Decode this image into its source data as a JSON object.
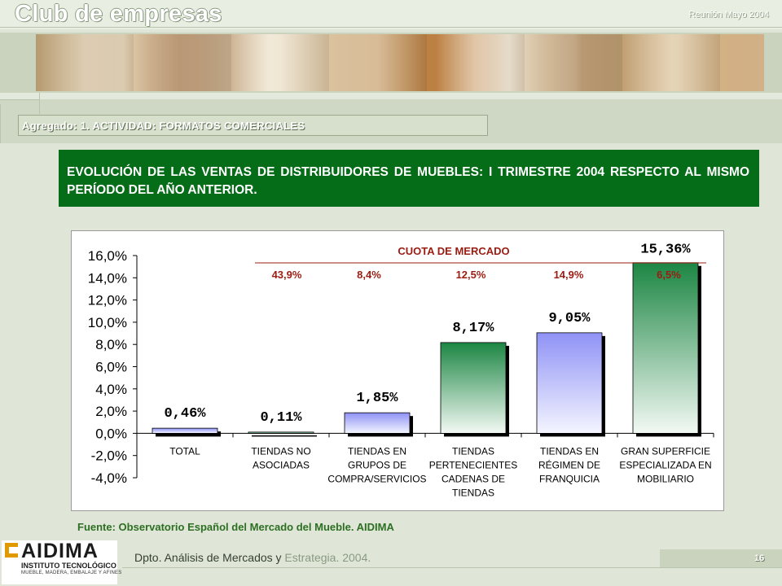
{
  "header": {
    "title": "Club de empresas",
    "meeting": "Reunión Mayo 2004"
  },
  "section": {
    "subtitle": "Agregado: 1. ACTIVIDAD: FORMATOS COMERCIALES"
  },
  "main": {
    "heading": "EVOLUCIÓN DE LAS VENTAS DE DISTRIBUIDORES DE MUEBLES: I TRIMESTRE 2004 RESPECTO AL MISMO PERÍODO DEL AÑO ANTERIOR.",
    "source": "Fuente: Observatorio Español del Mercado del Mueble. AIDIMA"
  },
  "footer": {
    "dept_dark": "Dpto. Análisis de Mercados y",
    "dept_light": "Estrategia. 2004.",
    "page": "16"
  },
  "logo": {
    "name": "AIDIMA",
    "line1": "INSTITUTO TECNOLÓGICO",
    "line2": "MUEBLE, MADERA, EMBALAJE Y AFINES"
  },
  "chart_data": {
    "type": "bar",
    "categories": [
      [
        "TOTAL"
      ],
      [
        "TIENDAS NO",
        "ASOCIADAS"
      ],
      [
        "TIENDAS EN",
        "GRUPOS DE",
        "COMPRA/SERVICIOS"
      ],
      [
        "TIENDAS",
        "PERTENECIENTES",
        "CADENAS DE",
        "TIENDAS"
      ],
      [
        "TIENDAS EN",
        "RÉGIMEN DE",
        "FRANQUICIA"
      ],
      [
        "GRAN SUPERFICIE",
        "ESPECIALIZADA EN",
        "MOBILIARIO"
      ]
    ],
    "values": [
      0.46,
      0.11,
      1.85,
      8.17,
      9.05,
      15.36
    ],
    "value_labels": [
      "0,46%",
      "0,11%",
      "1,85%",
      "8,17%",
      "9,05%",
      "15,36%"
    ],
    "bar_styles": [
      "blue",
      "green",
      "blue",
      "green",
      "blue",
      "green"
    ],
    "ylim": [
      -4.0,
      16.0
    ],
    "yticks": [
      16,
      14,
      12,
      10,
      8,
      6,
      4,
      2,
      0,
      -2,
      -4
    ],
    "ytick_labels": [
      "16,0%",
      "14,0%",
      "12,0%",
      "10,0%",
      "8,0%",
      "6,0%",
      "4,0%",
      "2,0%",
      "0,0%",
      "-2,0%",
      "-4,0%"
    ],
    "share_title": "CUOTA DE MERCADO",
    "market_share": [
      "43,9%",
      "8,4%",
      "12,5%",
      "14,9%",
      "6,5%"
    ],
    "colors": {
      "blue": "#9a9cf6",
      "green": "#1e8a46",
      "share": "#9b1c12",
      "value": "#000000"
    },
    "grid": false,
    "legend": "none"
  }
}
